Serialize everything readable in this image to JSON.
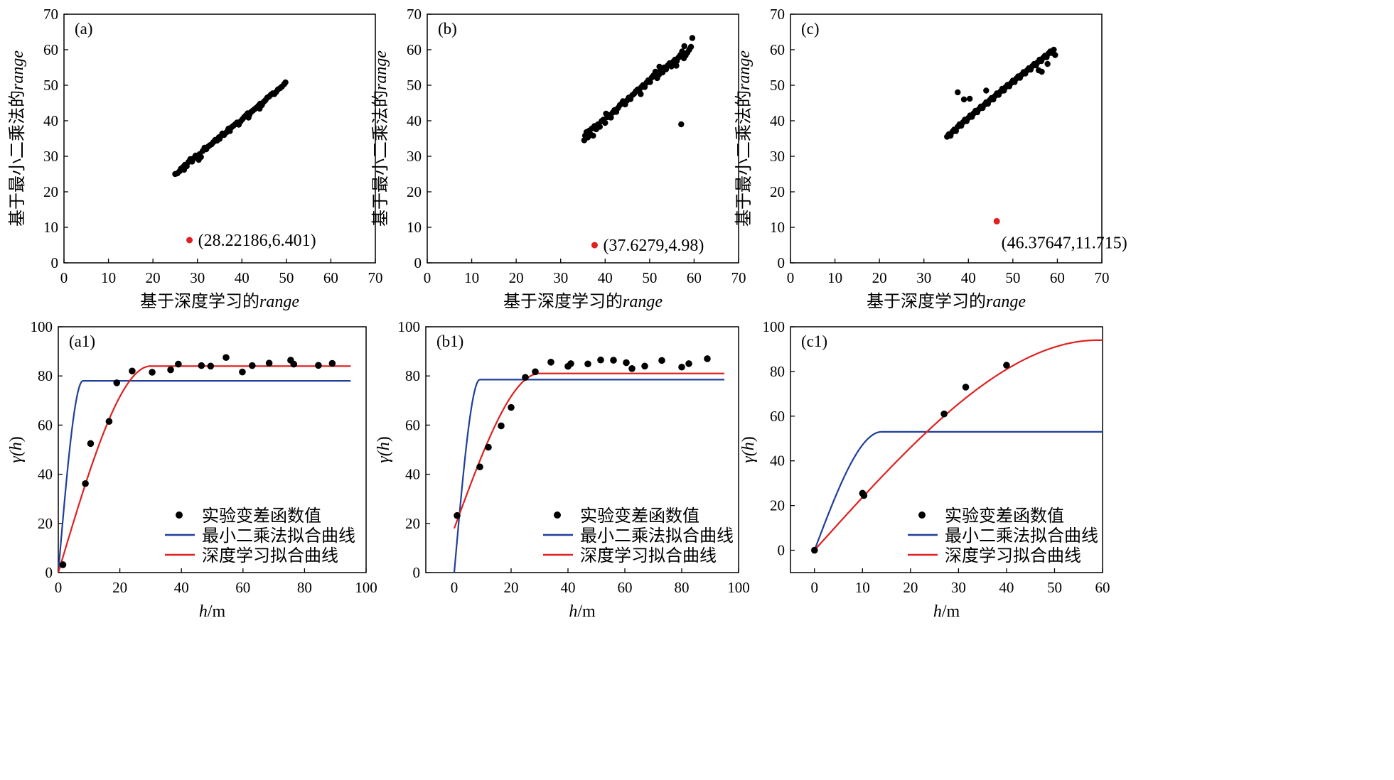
{
  "colors": {
    "points": "#000000",
    "outlier": "#e02020",
    "ls_curve": "#1f3f9a",
    "dl_curve": "#e02020"
  },
  "legend_labels": [
    "实验变差函数值",
    "最小二乘法拟合曲线",
    "深度学习拟合曲线"
  ],
  "chart_data": [
    {
      "type": "scatter",
      "panel": "(a)",
      "xlabel": "基于深度学习的range",
      "ylabel": "基于最小二乘法的range",
      "xlim": [
        0,
        70
      ],
      "ylim": [
        0,
        70
      ],
      "xticks": [
        0,
        10,
        20,
        30,
        40,
        50,
        60,
        70
      ],
      "yticks": [
        0,
        10,
        20,
        30,
        40,
        50,
        60,
        70
      ],
      "grid": false,
      "points": [
        [
          25,
          25
        ],
        [
          25.5,
          25.2
        ],
        [
          26,
          25.8
        ],
        [
          26.3,
          26.5
        ],
        [
          26.8,
          27
        ],
        [
          27.2,
          27.6
        ],
        [
          27.6,
          27.2
        ],
        [
          28,
          28.4
        ],
        [
          28.4,
          29.2
        ],
        [
          28.8,
          28.5
        ],
        [
          29.2,
          29.5
        ],
        [
          29.6,
          30.2
        ],
        [
          30,
          29.4
        ],
        [
          30.5,
          30.6
        ],
        [
          30.8,
          29.8
        ],
        [
          31.2,
          31.5
        ],
        [
          31.6,
          32.4
        ],
        [
          32,
          32
        ],
        [
          32.4,
          32.7
        ],
        [
          32.8,
          33.1
        ],
        [
          33.2,
          33.4
        ],
        [
          33.6,
          34
        ],
        [
          34,
          34.6
        ],
        [
          34.4,
          34.4
        ],
        [
          34.8,
          35.3
        ],
        [
          35.2,
          35.6
        ],
        [
          35.6,
          36.4
        ],
        [
          36,
          36
        ],
        [
          36.5,
          36.7
        ],
        [
          36.9,
          37.5
        ],
        [
          37.3,
          37.1
        ],
        [
          37.7,
          38.2
        ],
        [
          38.1,
          38.6
        ],
        [
          38.5,
          39
        ],
        [
          38.9,
          39.5
        ],
        [
          39.3,
          38.9
        ],
        [
          39.7,
          39.8
        ],
        [
          40.1,
          40.4
        ],
        [
          40.5,
          41
        ],
        [
          40.9,
          41.5
        ],
        [
          41.3,
          42.1
        ],
        [
          41.7,
          41.7
        ],
        [
          42.1,
          42.5
        ],
        [
          42.5,
          42.9
        ],
        [
          42.9,
          43.3
        ],
        [
          43.3,
          43.7
        ],
        [
          43.7,
          44.2
        ],
        [
          44.1,
          44.8
        ],
        [
          44.5,
          44.4
        ],
        [
          44.9,
          45.3
        ],
        [
          45.3,
          45.8
        ],
        [
          45.7,
          46.5
        ],
        [
          46.1,
          46.8
        ],
        [
          46.5,
          47.3
        ],
        [
          46.9,
          47.7
        ],
        [
          47.3,
          47.5
        ],
        [
          47.7,
          48.1
        ],
        [
          48.1,
          48.8
        ],
        [
          48.6,
          49.2
        ],
        [
          49,
          49.6
        ],
        [
          49.5,
          50.3
        ],
        [
          49.8,
          50.8
        ],
        [
          30.3,
          29
        ],
        [
          37,
          37.8
        ],
        [
          44,
          43.4
        ],
        [
          27,
          26.2
        ],
        [
          35,
          34.9
        ],
        [
          41.5,
          40.9
        ]
      ],
      "outlier": {
        "x": 28.22186,
        "y": 6.401,
        "label": "(28.22186,6.401)"
      }
    },
    {
      "type": "scatter",
      "panel": "(b)",
      "xlabel": "基于深度学习的range",
      "ylabel": "基于最小二乘法的range",
      "xlim": [
        0,
        70
      ],
      "ylim": [
        0,
        70
      ],
      "xticks": [
        0,
        10,
        20,
        30,
        40,
        50,
        60,
        70
      ],
      "yticks": [
        0,
        10,
        20,
        30,
        40,
        50,
        60,
        70
      ],
      "grid": false,
      "points": [
        [
          35.3,
          34.5
        ],
        [
          35.5,
          35.8
        ],
        [
          35.8,
          36.8
        ],
        [
          36.1,
          35.3
        ],
        [
          36.4,
          37.2
        ],
        [
          36.7,
          36.2
        ],
        [
          37,
          37.8
        ],
        [
          37.3,
          35.8
        ],
        [
          37.6,
          38.5
        ],
        [
          38,
          37.6
        ],
        [
          38.4,
          39
        ],
        [
          38.8,
          38.3
        ],
        [
          39.2,
          39.9
        ],
        [
          39.6,
          40.3
        ],
        [
          40,
          39.4
        ],
        [
          40.5,
          41
        ],
        [
          40.9,
          41.6
        ],
        [
          41.3,
          40.9
        ],
        [
          41.7,
          42.3
        ],
        [
          42.1,
          43
        ],
        [
          42.5,
          42.5
        ],
        [
          42.9,
          43.6
        ],
        [
          43.3,
          44.4
        ],
        [
          43.7,
          44.8
        ],
        [
          44.1,
          45.2
        ],
        [
          44.5,
          44.6
        ],
        [
          44.9,
          45.7
        ],
        [
          45.3,
          46.5
        ],
        [
          45.7,
          46.1
        ],
        [
          46.1,
          47.2
        ],
        [
          46.5,
          47.6
        ],
        [
          46.9,
          48.3
        ],
        [
          47.3,
          48.8
        ],
        [
          47.7,
          48.2
        ],
        [
          48.1,
          49.4
        ],
        [
          48.5,
          50
        ],
        [
          48.9,
          49.5
        ],
        [
          49.3,
          50.7
        ],
        [
          49.7,
          51.4
        ],
        [
          50.1,
          50.9
        ],
        [
          50.5,
          52.2
        ],
        [
          50.9,
          52.8
        ],
        [
          51.3,
          53.8
        ],
        [
          51.7,
          52
        ],
        [
          52.1,
          53
        ],
        [
          52.5,
          54.3
        ],
        [
          52.9,
          53.6
        ],
        [
          53.3,
          55
        ],
        [
          53.7,
          54.5
        ],
        [
          54.1,
          55.6
        ],
        [
          54.5,
          56.2
        ],
        [
          54.9,
          55.3
        ],
        [
          55.3,
          56.6
        ],
        [
          55.7,
          57.2
        ],
        [
          56.1,
          56.8
        ],
        [
          56.5,
          57.8
        ],
        [
          56.9,
          58.5
        ],
        [
          57.3,
          59.5
        ],
        [
          57.7,
          57.6
        ],
        [
          58.1,
          58.4
        ],
        [
          58.5,
          59.2
        ],
        [
          58.9,
          60
        ],
        [
          59.3,
          60.8
        ],
        [
          59.6,
          63.3
        ],
        [
          57.1,
          39
        ],
        [
          56,
          55.5
        ],
        [
          48,
          47.5
        ],
        [
          36,
          36.5
        ],
        [
          40.2,
          42
        ],
        [
          44,
          45.5
        ],
        [
          52.2,
          55.2
        ],
        [
          57.8,
          61
        ]
      ],
      "outlier": {
        "x": 37.6279,
        "y": 4.98,
        "label": "(37.6279,4.98)"
      }
    },
    {
      "type": "scatter",
      "panel": "(c)",
      "xlabel": "基于深度学习的range",
      "ylabel": "基于最小二乘法的range",
      "xlim": [
        0,
        70
      ],
      "ylim": [
        0,
        70
      ],
      "xticks": [
        0,
        10,
        20,
        30,
        40,
        50,
        60,
        70
      ],
      "yticks": [
        0,
        10,
        20,
        30,
        40,
        50,
        60,
        70
      ],
      "grid": false,
      "points": [
        [
          35.2,
          35.5
        ],
        [
          35.6,
          36.2
        ],
        [
          36,
          35.8
        ],
        [
          36.4,
          36.9
        ],
        [
          36.8,
          37.5
        ],
        [
          37.2,
          37.1
        ],
        [
          37.6,
          38.3
        ],
        [
          38,
          39
        ],
        [
          38.4,
          38.6
        ],
        [
          38.8,
          39.6
        ],
        [
          39.2,
          40.3
        ],
        [
          39.6,
          39.9
        ],
        [
          40,
          40.8
        ],
        [
          40.4,
          41.5
        ],
        [
          40.8,
          41.1
        ],
        [
          41.2,
          42.1
        ],
        [
          41.6,
          42.8
        ],
        [
          42,
          42.4
        ],
        [
          42.4,
          43.3
        ],
        [
          42.8,
          44
        ],
        [
          43.2,
          43.6
        ],
        [
          43.6,
          44.5
        ],
        [
          44,
          45.2
        ],
        [
          44.4,
          44.8
        ],
        [
          44.8,
          45.8
        ],
        [
          45.2,
          46.4
        ],
        [
          45.6,
          46
        ],
        [
          46,
          47
        ],
        [
          46.4,
          47.7
        ],
        [
          46.8,
          47.3
        ],
        [
          47.2,
          48.2
        ],
        [
          47.6,
          49
        ],
        [
          48,
          48.5
        ],
        [
          48.4,
          49.5
        ],
        [
          48.8,
          50.1
        ],
        [
          49.2,
          49.7
        ],
        [
          49.6,
          50.6
        ],
        [
          50,
          51.3
        ],
        [
          50.4,
          50.9
        ],
        [
          50.8,
          51.9
        ],
        [
          51.2,
          52.5
        ],
        [
          51.6,
          52.1
        ],
        [
          52,
          53
        ],
        [
          52.4,
          53.7
        ],
        [
          52.8,
          53.3
        ],
        [
          53.2,
          54.2
        ],
        [
          53.6,
          54.8
        ],
        [
          54,
          54.4
        ],
        [
          54.4,
          55.4
        ],
        [
          54.8,
          56
        ],
        [
          55.2,
          55.6
        ],
        [
          55.6,
          56.5
        ],
        [
          56,
          57.2
        ],
        [
          56.4,
          56.8
        ],
        [
          56.8,
          57.7
        ],
        [
          57.2,
          58.3
        ],
        [
          57.6,
          57.9
        ],
        [
          58,
          58.9
        ],
        [
          58.4,
          59.5
        ],
        [
          58.8,
          59.1
        ],
        [
          59.2,
          60
        ],
        [
          37.6,
          48
        ],
        [
          39,
          46
        ],
        [
          40.3,
          46.2
        ],
        [
          44,
          48.5
        ],
        [
          56.5,
          53.8
        ],
        [
          57.8,
          56
        ],
        [
          59.5,
          58.5
        ],
        [
          55.8,
          54.2
        ]
      ],
      "outlier": {
        "x": 46.37647,
        "y": 11.715,
        "label": "(46.37647,11.715)"
      }
    },
    {
      "type": "line",
      "panel": "(a1)",
      "xlabel": "h/m",
      "ylabel": "γ(h)",
      "xlim": [
        0,
        100
      ],
      "ylim": [
        0,
        100
      ],
      "xticks": [
        0,
        20,
        40,
        60,
        80,
        100
      ],
      "yticks": [
        0,
        20,
        40,
        60,
        80,
        100
      ],
      "grid": false,
      "legend": "bottom-right",
      "experimental": [
        [
          1.5,
          3.2
        ],
        [
          8.8,
          36.2
        ],
        [
          10.5,
          52.5
        ],
        [
          16.5,
          61.5
        ],
        [
          19,
          77.2
        ],
        [
          24,
          82
        ],
        [
          30.5,
          81.5
        ],
        [
          36.5,
          82.5
        ],
        [
          39,
          84.8
        ],
        [
          46.5,
          84.2
        ],
        [
          49.5,
          84
        ],
        [
          54.5,
          87.5
        ],
        [
          59.8,
          81.6
        ],
        [
          63,
          84.2
        ],
        [
          68.5,
          85.2
        ],
        [
          75.5,
          86.4
        ],
        [
          76.5,
          84.8
        ],
        [
          84.5,
          84.3
        ],
        [
          89,
          85.1
        ]
      ],
      "least_squares": {
        "sill": 78,
        "range": 8,
        "nugget": 0,
        "x_max": 95
      },
      "deep_learning": {
        "sill": 84,
        "range": 30,
        "nugget": 0,
        "x_max": 95
      }
    },
    {
      "type": "line",
      "panel": "(b1)",
      "xlabel": "h/m",
      "ylabel": "γ(h)",
      "xlim": [
        -10,
        100
      ],
      "ylim": [
        0,
        100
      ],
      "xticks": [
        0,
        20,
        40,
        60,
        80,
        100
      ],
      "yticks": [
        0,
        20,
        40,
        60,
        80,
        100
      ],
      "grid": false,
      "legend": "bottom-right",
      "experimental": [
        [
          1,
          23.2
        ],
        [
          9,
          43
        ],
        [
          12,
          51
        ],
        [
          16.5,
          59.7
        ],
        [
          20,
          67.2
        ],
        [
          25,
          79.4
        ],
        [
          28.5,
          81.7
        ],
        [
          34,
          85.6
        ],
        [
          40,
          83.9
        ],
        [
          41,
          85
        ],
        [
          47,
          84.9
        ],
        [
          51.5,
          86.5
        ],
        [
          56,
          86.4
        ],
        [
          60.5,
          85.4
        ],
        [
          62.5,
          83
        ],
        [
          67,
          84
        ],
        [
          73,
          86.3
        ],
        [
          80,
          83.6
        ],
        [
          82.5,
          85
        ],
        [
          89,
          87
        ]
      ],
      "least_squares": {
        "sill": 78.5,
        "range": 9,
        "nugget": 0,
        "x_max": 95
      },
      "deep_learning": {
        "sill": 81,
        "range": 30,
        "nugget": 18,
        "x_max": 95
      }
    },
    {
      "type": "line",
      "panel": "(c1)",
      "xlabel": "h/m",
      "ylabel": "γ(h)",
      "xlim": [
        -5,
        60
      ],
      "ylim": [
        -10,
        100
      ],
      "xticks": [
        0,
        10,
        20,
        30,
        40,
        50,
        60
      ],
      "yticks": [
        0,
        20,
        40,
        60,
        80,
        100
      ],
      "grid": false,
      "legend": "bottom-right",
      "experimental": [
        [
          0,
          0
        ],
        [
          10,
          25.5
        ],
        [
          10.3,
          24.5
        ],
        [
          27,
          61
        ],
        [
          31.5,
          73
        ],
        [
          40,
          82.8
        ]
      ],
      "least_squares": {
        "sill": 53,
        "range": 14,
        "nugget": 0,
        "x_max": 60
      },
      "deep_learning": {
        "sill": 94,
        "range": 59,
        "nugget": 0,
        "x_max": 60
      }
    }
  ]
}
